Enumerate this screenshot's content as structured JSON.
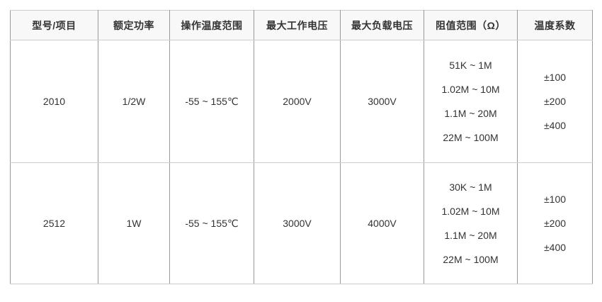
{
  "colors": {
    "header_background": "#f8f8f8",
    "vertical_border": "#9a9a9a",
    "horizontal_border": "#cccccc",
    "text": "#333333",
    "page_background": "#ffffff"
  },
  "table": {
    "headers": {
      "model": "型号/项目",
      "rated_power": "额定功率",
      "operating_temp_range": "操作温度范围",
      "max_working_voltage": "最大工作电压",
      "max_overload_voltage": "最大负载电压",
      "resistance_range": "阻值范围（Ω）",
      "temp_coefficient": "温度系数"
    },
    "rows": [
      {
        "model": "2010",
        "rated_power": "1/2W",
        "operating_temp_range": "-55 ~ 155℃",
        "max_working_voltage": "2000V",
        "max_overload_voltage": "3000V",
        "resistance_ranges": [
          "51K ~ 1M",
          "1.02M ~ 10M",
          "1.1M ~ 20M",
          "22M ~ 100M"
        ],
        "temp_coefficients": [
          "±100",
          "±200",
          "±400"
        ]
      },
      {
        "model": "2512",
        "rated_power": "1W",
        "operating_temp_range": "-55 ~ 155℃",
        "max_working_voltage": "3000V",
        "max_overload_voltage": "4000V",
        "resistance_ranges": [
          "30K ~ 1M",
          "1.02M ~ 10M",
          "1.1M ~ 20M",
          "22M ~ 100M"
        ],
        "temp_coefficients": [
          "±100",
          "±200",
          "±400"
        ]
      }
    ]
  }
}
